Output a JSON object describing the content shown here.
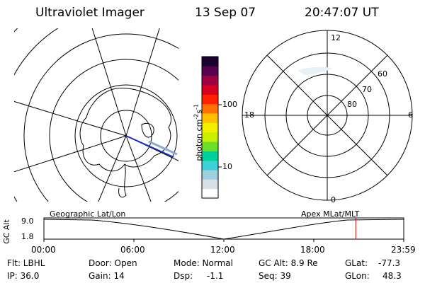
{
  "header": {
    "title": "Ultraviolet Imager",
    "date": "13 Sep 07",
    "time": "20:47:07 UT"
  },
  "colorbar": {
    "label_main": "photon cm",
    "label_exp1": "-2",
    "label_mid": "s",
    "label_exp2": "-1",
    "tick_100": "100",
    "tick_10": "10",
    "colors": [
      "#ffffff",
      "#d8e0e6",
      "#9fd0e0",
      "#3fd0d8",
      "#00d09c",
      "#6be02a",
      "#c8f000",
      "#f0f000",
      "#ffc000",
      "#ff7000",
      "#ff2000",
      "#d80020",
      "#a00040",
      "#5a0050",
      "#1a0030"
    ]
  },
  "polar_plot": {
    "mlt_top": "12",
    "mlt_right": "6",
    "mlt_left": "18",
    "mlt_bottom": "0",
    "lat_60": "60",
    "lat_70": "70",
    "lat_80": "80"
  },
  "timeline": {
    "axis_label": "GC Alt",
    "alt_high": "9.0",
    "alt_low": "1.8",
    "left_title": "Geographic Lat/Lon",
    "right_title": "Apex MLat/MLT",
    "ticks": [
      "00:00",
      "06:00",
      "12:00",
      "18:00",
      "23:59"
    ],
    "marker_time": "20:47:07",
    "marker_color": "#cc0000"
  },
  "info": {
    "flt": "Flt: LBHL",
    "ip": "IP: 36.0",
    "door": "Door: Open",
    "gain": "Gain: 14",
    "mode": "Mode: Normal",
    "dsp": "Dsp:",
    "dsp_val": "-1.1",
    "gcalt": "GC Alt: 8.9 Re",
    "seq": "Seq: 39",
    "glat_label": "GLat:",
    "glat_val": "-77.3",
    "glon_label": "GLon:",
    "glon_val": "48.3"
  }
}
